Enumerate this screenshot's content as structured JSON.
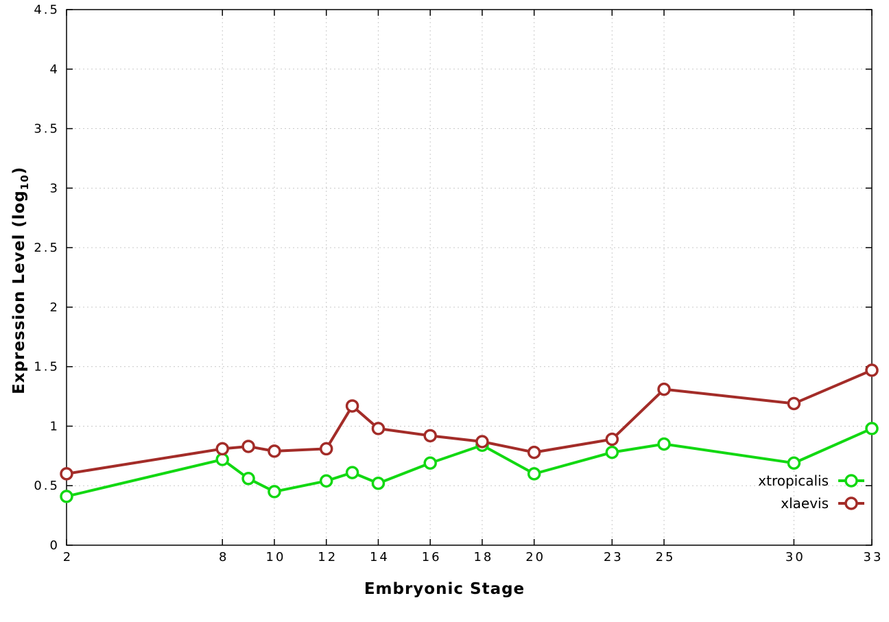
{
  "chart_data": {
    "type": "line",
    "title": "",
    "xlabel": "Embryonic Stage",
    "ylabel": "Expression Level (log10)",
    "ylabel_parts": {
      "main": "Expression Level (log",
      "sub": "10",
      "close": ")"
    },
    "xlim": [
      2,
      33
    ],
    "ylim": [
      0,
      4.5
    ],
    "xticks": [
      2,
      8,
      10,
      12,
      14,
      16,
      18,
      20,
      23,
      25,
      30,
      33
    ],
    "yticks": [
      0,
      0.5,
      1,
      1.5,
      2,
      2.5,
      3,
      3.5,
      4,
      4.5
    ],
    "ytick_labels": [
      "0",
      "0.5",
      "1",
      "1.5",
      "2",
      "2.5",
      "3",
      "3.5",
      "4",
      "4.5"
    ],
    "grid": "dotted",
    "grid_color": "#c9c9c9",
    "legend_position": "inside-bottom-right",
    "x": [
      2,
      8,
      9,
      10,
      12,
      13,
      14,
      16,
      18,
      20,
      23,
      25,
      30,
      33
    ],
    "series": [
      {
        "name": "xtropicalis",
        "color": "#12d812",
        "values": [
          0.41,
          0.72,
          0.56,
          0.45,
          0.54,
          0.61,
          0.52,
          0.69,
          0.84,
          0.6,
          0.78,
          0.85,
          0.69,
          0.98
        ]
      },
      {
        "name": "xlaevis",
        "color": "#a32c28",
        "values": [
          0.6,
          0.81,
          0.83,
          0.79,
          0.81,
          1.17,
          0.98,
          0.92,
          0.87,
          0.78,
          0.89,
          1.31,
          1.19,
          1.47
        ]
      }
    ]
  }
}
